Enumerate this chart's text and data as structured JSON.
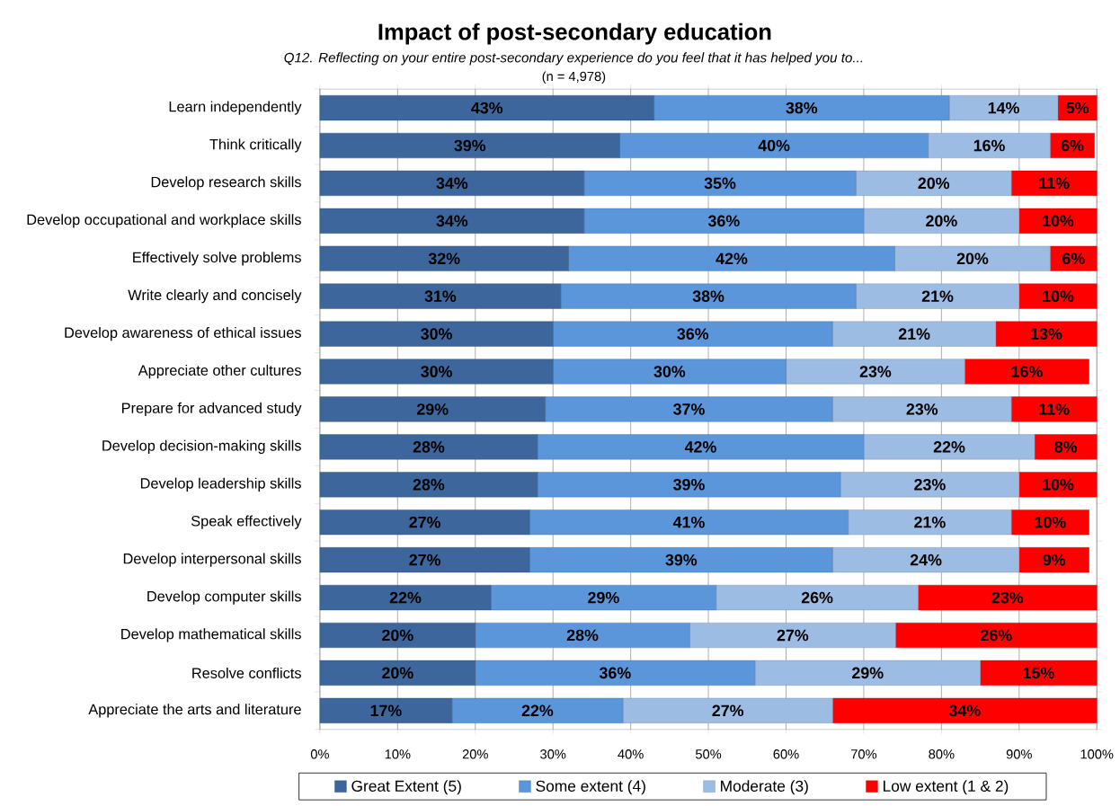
{
  "chart_data": {
    "type": "bar",
    "orientation": "horizontal",
    "stacked": true,
    "title": "Impact of post-secondary education",
    "subtitle": "Q12. Reflecting on your entire post-secondary experience do you feel that it has helped you to...",
    "annotations": [
      "(n = 4,978)"
    ],
    "categories": [
      "Learn independently",
      "Think critically",
      "Develop research skills",
      "Develop occupational and workplace skills",
      "Effectively solve problems",
      "Write clearly and concisely",
      "Develop awareness of ethical issues",
      "Appreciate other cultures",
      "Prepare for advanced study",
      "Develop decision-making skills",
      "Develop leadership skills",
      "Speak effectively",
      "Develop interpersonal skills",
      "Develop computer skills",
      "Develop mathematical skills",
      "Resolve conflicts",
      "Appreciate the arts and literature"
    ],
    "series": [
      {
        "name": "Great Extent (5)",
        "color": "#3d679c",
        "values": [
          43,
          38.6,
          34,
          34,
          32,
          31,
          30,
          30,
          29,
          28,
          28,
          27,
          27,
          22,
          20,
          20,
          17
        ],
        "value_labels": [
          "43%",
          "39%",
          "34%",
          "34%",
          "32%",
          "31%",
          "30%",
          "30%",
          "29%",
          "28%",
          "28%",
          "27%",
          "27%",
          "22%",
          "20%",
          "20%",
          "17%"
        ]
      },
      {
        "name": "Some extent (4)",
        "color": "#5b96da",
        "values": [
          38,
          39.7,
          35,
          36,
          42,
          38,
          36,
          30,
          37,
          42,
          39,
          41,
          39,
          29,
          27.6,
          36,
          22
        ],
        "value_labels": [
          "38%",
          "40%",
          "35%",
          "36%",
          "42%",
          "38%",
          "36%",
          "30%",
          "37%",
          "42%",
          "39%",
          "41%",
          "39%",
          "29%",
          "28%",
          "36%",
          "22%"
        ]
      },
      {
        "name": "Moderate (3)",
        "color": "#9dbce3",
        "values": [
          14,
          15.7,
          20,
          20,
          20,
          21,
          21,
          23,
          23,
          22,
          23,
          21,
          24,
          26,
          26.5,
          29,
          27
        ],
        "value_labels": [
          "14%",
          "16%",
          "20%",
          "20%",
          "20%",
          "21%",
          "21%",
          "23%",
          "23%",
          "22%",
          "23%",
          "21%",
          "24%",
          "26%",
          "27%",
          "29%",
          "27%"
        ]
      },
      {
        "name": "Low extent (1 & 2)",
        "color": "#ff0000",
        "values": [
          5,
          5.7,
          11,
          10,
          6,
          10,
          13,
          16,
          11,
          8,
          10,
          10,
          9,
          23,
          25.9,
          15,
          34
        ],
        "value_labels": [
          "5%",
          "6%",
          "11%",
          "10%",
          "6%",
          "10%",
          "13%",
          "16%",
          "11%",
          "8%",
          "10%",
          "10%",
          "9%",
          "23%",
          "26%",
          "15%",
          "34%"
        ]
      }
    ],
    "xlim": [
      0,
      100
    ],
    "xticks": [
      {
        "value": 0,
        "label": "0%"
      },
      {
        "value": 10,
        "label": "10%"
      },
      {
        "value": 20,
        "label": "20%"
      },
      {
        "value": 30,
        "label": "30%"
      },
      {
        "value": 40,
        "label": "40%"
      },
      {
        "value": 50,
        "label": "50%"
      },
      {
        "value": 60,
        "label": "60%"
      },
      {
        "value": 70,
        "label": "70%"
      },
      {
        "value": 80,
        "label": "80%"
      },
      {
        "value": 90,
        "label": "90%"
      },
      {
        "value": 100,
        "label": "100%"
      }
    ],
    "grid": "x",
    "legend": "bottom"
  }
}
